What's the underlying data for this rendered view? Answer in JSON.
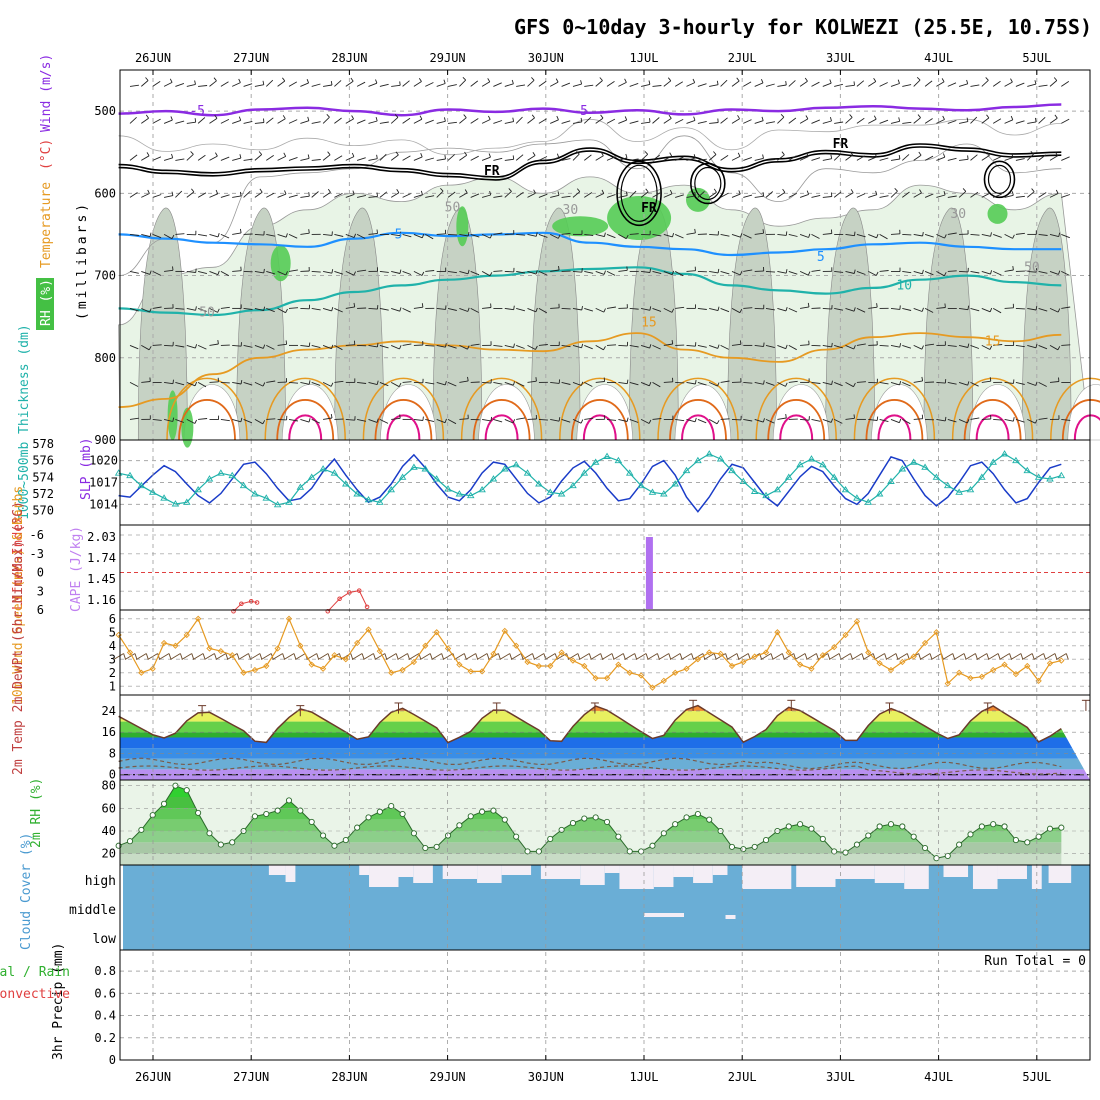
{
  "title": "GFS 0~10day 3-hourly for KOLWEZI (25.5E, 10.75S)",
  "colors": {
    "purple": "#8a2be2",
    "black": "#000000",
    "blue": "#1e90ff",
    "teal": "#20b2aa",
    "orange": "#e69a22",
    "darkorange": "#e06a1a",
    "magenta": "#e0108a",
    "slp": "#1a3cc8",
    "thickness": "#20b2aa",
    "cape": "#b070f0",
    "li": "#e04040",
    "wind10m": "#e69a22",
    "rh_fill": "#44c044",
    "cloud": "#6aaed6",
    "run_total": "#000000"
  },
  "chart_data": [
    {
      "panel": "upper-air",
      "type": "contour",
      "title": "GFS 0~10day 3-hourly for KOLWEZI (25.5E, 10.75S)",
      "x_ticks": [
        "26JUN",
        "27JUN",
        "28JUN",
        "29JUN",
        "30JUN",
        "1JUL",
        "2JUL",
        "3JUL",
        "4JUL",
        "5JUL"
      ],
      "ylabel_parts": [
        "RH (%)",
        "Temperature",
        "(°C)",
        "Wind (m/s)"
      ],
      "ylabel_units": "(millibars)",
      "y_ticks": [
        500,
        600,
        700,
        800,
        900
      ],
      "ylim": [
        900,
        450
      ],
      "contour_labels": [
        {
          "t": 0.45,
          "p": 505,
          "label": "-5",
          "color": "purple"
        },
        {
          "t": 4.35,
          "p": 505,
          "label": "-5",
          "color": "purple"
        },
        {
          "t": 3.45,
          "p": 578,
          "label": "FR",
          "color": "black"
        },
        {
          "t": 5.05,
          "p": 623,
          "label": "FR",
          "color": "black"
        },
        {
          "t": 7.0,
          "p": 545,
          "label": "FR",
          "color": "black"
        },
        {
          "t": 2.5,
          "p": 655,
          "label": "5",
          "color": "blue"
        },
        {
          "t": 6.8,
          "p": 682,
          "label": "5",
          "color": "blue"
        },
        {
          "t": 7.65,
          "p": 717,
          "label": "10",
          "color": "teal"
        },
        {
          "t": 5.05,
          "p": 762,
          "label": "15",
          "color": "orange"
        },
        {
          "t": 8.55,
          "p": 785,
          "label": "15",
          "color": "orange"
        },
        {
          "t": 3.05,
          "p": 622,
          "label": "50",
          "color": "gray"
        },
        {
          "t": 0.55,
          "p": 750,
          "label": "50",
          "color": "gray"
        },
        {
          "t": 8.2,
          "p": 630,
          "label": "30",
          "color": "gray"
        },
        {
          "t": 4.25,
          "p": 625,
          "label": "30",
          "color": "gray"
        },
        {
          "t": 8.95,
          "p": 695,
          "label": "50",
          "color": "gray"
        }
      ],
      "contours": {
        "temp_m5": [
          503,
          500,
          505,
          498,
          496,
          500,
          505,
          498,
          501,
          497,
          502,
          499,
          504,
          498,
          500,
          496,
          494,
          497,
          499,
          495,
          492
        ],
        "freezing": [
          565,
          572,
          575,
          570,
          568,
          565,
          570,
          576,
          580,
          560,
          545,
          560,
          555,
          570,
          558,
          548,
          552,
          540,
          545,
          552,
          550
        ],
        "temp_5": [
          650,
          655,
          660,
          662,
          665,
          655,
          648,
          652,
          650,
          648,
          660,
          665,
          668,
          675,
          672,
          668,
          662,
          660,
          665,
          668,
          668
        ],
        "temp_10": [
          740,
          745,
          748,
          742,
          730,
          720,
          712,
          705,
          700,
          695,
          692,
          690,
          698,
          712,
          718,
          722,
          715,
          705,
          700,
          708,
          712
        ],
        "temp_15": [
          860,
          850,
          820,
          800,
          790,
          785,
          780,
          785,
          790,
          792,
          780,
          770,
          790,
          800,
          805,
          790,
          775,
          770,
          775,
          780,
          772
        ],
        "rh_50": [
          760,
          700,
          690,
          640,
          620,
          600,
          610,
          590,
          580,
          600,
          580,
          600,
          590,
          620,
          640,
          630,
          620,
          590,
          600,
          620,
          600
        ]
      }
    },
    {
      "panel": "slp-thickness",
      "type": "line",
      "ylabel_left": "1000~500mb Thickness (dm)",
      "ylabel_right": "SLP (mb)",
      "y_ticks_left": [
        570,
        572,
        574,
        576,
        578
      ],
      "y_ticks_right": [
        1014,
        1017,
        1020
      ],
      "series": [
        {
          "name": "SLP (mb)",
          "color_key": "slp",
          "values": [
            1015.2,
            1015.0,
            1016.5,
            1018.0,
            1019.3,
            1018.5,
            1016.8,
            1015.2,
            1014.2,
            1015.5,
            1017.5,
            1019.5,
            1019.8,
            1018.2,
            1016.2,
            1014.5,
            1014.8,
            1016.2,
            1018.5,
            1020.2,
            1018.0,
            1016.0,
            1014.3,
            1015.0,
            1016.8,
            1019.2,
            1020.8,
            1019.0,
            1016.8,
            1015.0,
            1014.5,
            1016.0,
            1018.3,
            1019.8,
            1019.5,
            1017.5,
            1015.5,
            1014.2,
            1015.0,
            1017.2,
            1019.0,
            1019.9,
            1018.3,
            1016.2,
            1014.5,
            1014.8,
            1016.8,
            1019.2,
            1020.0,
            1018.0,
            1015.0,
            1013.0,
            1015.0,
            1017.5,
            1019.5,
            1019.0,
            1017.0,
            1015.0,
            1013.8,
            1015.8,
            1017.8,
            1019.2,
            1018.5,
            1016.5,
            1014.8,
            1014.0,
            1015.5,
            1018.0,
            1020.5,
            1020.0,
            1017.5,
            1015.2,
            1013.8,
            1015.0,
            1017.0,
            1019.3,
            1019.8,
            1018.2,
            1016.0,
            1014.2,
            1014.8,
            1017.0,
            1019.0,
            1019.5
          ]
        },
        {
          "name": "Thickness (dm)",
          "color_key": "thickness",
          "values": [
            574.5,
            574.2,
            573.0,
            572.2,
            571.5,
            570.8,
            571.0,
            572.5,
            573.8,
            574.5,
            574.2,
            573.0,
            572.0,
            571.5,
            570.7,
            571.0,
            572.8,
            574.0,
            575.0,
            574.5,
            573.2,
            572.0,
            571.3,
            571.0,
            572.5,
            574.0,
            575.2,
            575.0,
            573.8,
            572.6,
            572.0,
            571.8,
            572.5,
            573.8,
            575.0,
            575.5,
            574.5,
            573.2,
            572.2,
            572.0,
            573.0,
            574.5,
            575.8,
            576.5,
            576.0,
            574.5,
            573.0,
            572.2,
            572.0,
            573.2,
            574.8,
            576.0,
            576.8,
            576.2,
            574.8,
            573.5,
            572.3,
            571.8,
            572.5,
            574.0,
            575.5,
            576.2,
            575.5,
            574.0,
            572.5,
            571.5,
            571.0,
            572.0,
            573.5,
            575.0,
            575.8,
            575.2,
            574.0,
            573.0,
            572.2,
            572.5,
            574.0,
            575.8,
            576.8,
            576.0,
            574.8,
            574.0,
            573.8,
            574.2
          ]
        }
      ]
    },
    {
      "panel": "li-cape",
      "type": "bar",
      "ylabel_left": "Lifted Index",
      "ylabel_right": "CAPE (J/kg)",
      "y_ticks_left": [
        6,
        3,
        0,
        -3,
        -6
      ],
      "y_ticks_right": [
        1.16,
        1.45,
        1.74,
        2.03
      ],
      "cape_bars": [
        {
          "t": 5.05,
          "value": 2.03
        }
      ],
      "li_segments": [
        {
          "name": "LI segment 1",
          "t": [
            0.82,
            0.9,
            1.0,
            1.06
          ],
          "values": [
            6.2,
            5.0,
            4.6,
            4.8
          ]
        },
        {
          "name": "LI segment 2",
          "t": [
            1.78,
            1.9,
            2.0,
            2.1,
            2.18
          ],
          "values": [
            6.2,
            4.2,
            3.2,
            2.9,
            5.5
          ]
        }
      ]
    },
    {
      "panel": "wind10m",
      "type": "line",
      "ylabel": "10m Wind Speed (m/s) & Barbs",
      "y_ticks": [
        1,
        2,
        3,
        4,
        5,
        6
      ],
      "series": [
        {
          "name": "10m Wind Speed (m/s)",
          "color_key": "wind10m",
          "values": [
            4.8,
            3.5,
            2.0,
            2.3,
            4.2,
            4.0,
            4.8,
            6.0,
            3.8,
            3.6,
            3.3,
            2.0,
            2.2,
            2.5,
            3.8,
            6.0,
            4.0,
            2.6,
            2.3,
            3.3,
            3.0,
            4.2,
            5.2,
            3.6,
            2.0,
            2.2,
            2.8,
            4.0,
            5.0,
            3.8,
            2.6,
            2.1,
            2.1,
            3.4,
            5.1,
            4.0,
            2.8,
            2.5,
            2.5,
            3.5,
            2.9,
            2.5,
            1.6,
            1.6,
            2.6,
            2.0,
            1.8,
            0.9,
            1.4,
            2.0,
            2.3,
            3.0,
            3.5,
            3.4,
            2.5,
            2.8,
            3.2,
            3.5,
            5.0,
            3.5,
            2.6,
            2.3,
            3.3,
            3.9,
            4.8,
            5.8,
            3.5,
            2.7,
            2.2,
            2.8,
            3.2,
            4.2,
            5.0,
            1.2,
            2.0,
            1.6,
            1.7,
            2.2,
            2.6,
            1.9,
            2.5,
            1.4,
            2.7,
            2.9
          ]
        }
      ]
    },
    {
      "panel": "temp2m",
      "type": "area",
      "ylabel": "2m Temp 2m DewPt (6hr Min/Max) (°C)",
      "y_ticks": [
        0,
        8,
        16,
        24
      ],
      "daily_max": [
        24,
        24,
        25,
        25,
        25,
        26,
        26,
        25,
        25,
        26
      ],
      "daily_min": [
        12,
        12,
        12,
        12,
        12,
        12,
        12,
        12,
        12,
        12
      ]
    },
    {
      "panel": "rh2m",
      "type": "area",
      "ylabel": "2m RH (%)",
      "y_ticks": [
        20,
        40,
        60,
        80
      ],
      "series": [
        {
          "name": "2m RH (%)",
          "color_key": "rh_fill",
          "values": [
            27,
            31,
            41,
            54,
            64,
            80,
            76,
            56,
            38,
            28,
            30,
            40,
            53,
            55,
            58,
            67,
            58,
            48,
            36,
            27,
            32,
            43,
            52,
            57,
            62,
            55,
            38,
            25,
            26,
            36,
            45,
            53,
            57,
            58,
            50,
            35,
            22,
            22,
            33,
            41,
            47,
            51,
            52,
            48,
            35,
            22,
            22,
            27,
            38,
            46,
            52,
            55,
            50,
            40,
            26,
            24,
            26,
            32,
            40,
            44,
            46,
            42,
            33,
            22,
            21,
            28,
            36,
            44,
            46,
            44,
            35,
            25,
            16,
            18,
            28,
            37,
            44,
            46,
            44,
            32,
            30,
            35,
            42,
            43
          ]
        }
      ]
    },
    {
      "panel": "cloud",
      "type": "area",
      "ylabel": "Cloud Cover (%)",
      "y_labels": [
        "high",
        "middle",
        "low"
      ]
    },
    {
      "panel": "precip",
      "type": "bar",
      "ylabel": "3hr Precip (mm)",
      "legend_left": [
        "Total / Rain",
        "Convective"
      ],
      "y_ticks": [
        0,
        0.2,
        0.4,
        0.6,
        0.8
      ],
      "run_total": "Run Total = 0",
      "values": []
    }
  ]
}
